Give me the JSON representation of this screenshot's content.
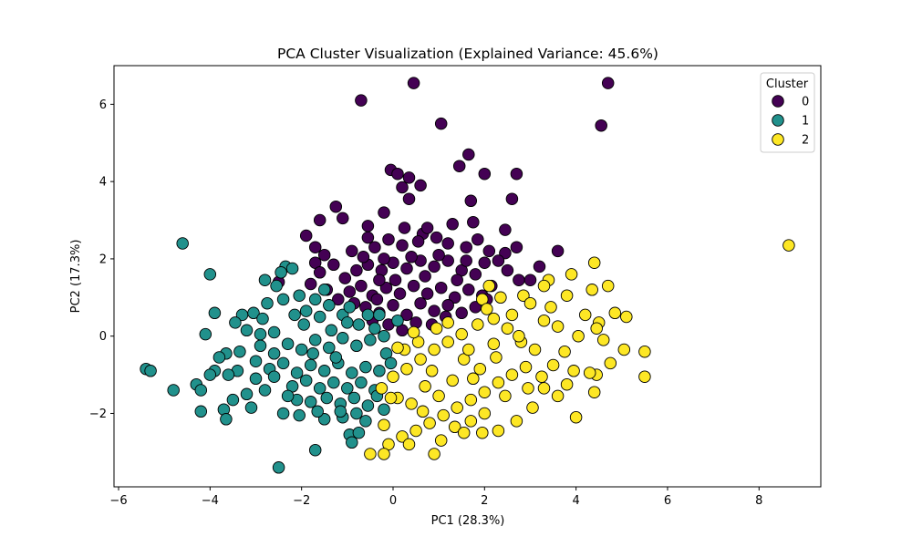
{
  "chart_data": {
    "type": "scatter",
    "title": "PCA Cluster Visualization (Explained Variance: 45.6%)",
    "xlabel": "PC1 (28.3%)",
    "ylabel": "PC2 (17.3%)",
    "xlim": [
      -6.1,
      9.35
    ],
    "ylim": [
      -3.9,
      7.0
    ],
    "x_ticks": [
      -6,
      -4,
      -2,
      0,
      2,
      4,
      6,
      8
    ],
    "y_ticks": [
      -2,
      0,
      2,
      4,
      6
    ],
    "x_tick_labels": [
      "−6",
      "−4",
      "−2",
      "0",
      "2",
      "4",
      "6",
      "8"
    ],
    "y_tick_labels": [
      "−2",
      "0",
      "2",
      "4",
      "6"
    ],
    "grid": false,
    "legend": {
      "title": "Cluster",
      "placement": "top-right"
    },
    "series": [
      {
        "name": "0",
        "color": "#440154",
        "points": [
          [
            -0.7,
            6.1
          ],
          [
            0.45,
            6.55
          ],
          [
            4.7,
            6.55
          ],
          [
            4.55,
            5.45
          ],
          [
            1.05,
            5.5
          ],
          [
            1.65,
            4.7
          ],
          [
            1.45,
            4.4
          ],
          [
            2.0,
            4.2
          ],
          [
            2.7,
            4.2
          ],
          [
            2.6,
            3.55
          ],
          [
            1.7,
            3.5
          ],
          [
            0.35,
            3.55
          ],
          [
            0.6,
            3.9
          ],
          [
            -0.05,
            4.3
          ],
          [
            0.1,
            4.2
          ],
          [
            0.35,
            4.1
          ],
          [
            0.2,
            3.85
          ],
          [
            -0.2,
            3.2
          ],
          [
            -1.25,
            3.35
          ],
          [
            -1.6,
            3.0
          ],
          [
            -1.1,
            3.05
          ],
          [
            -0.55,
            2.85
          ],
          [
            0.65,
            2.65
          ],
          [
            1.3,
            2.9
          ],
          [
            1.75,
            2.95
          ],
          [
            2.45,
            2.75
          ],
          [
            3.6,
            2.2
          ],
          [
            -0.55,
            2.55
          ],
          [
            -1.7,
            2.3
          ],
          [
            -1.7,
            1.9
          ],
          [
            -2.5,
            1.4
          ],
          [
            -1.6,
            1.65
          ],
          [
            -1.3,
            1.85
          ],
          [
            -0.9,
            2.2
          ],
          [
            -0.4,
            2.3
          ],
          [
            -0.1,
            2.5
          ],
          [
            0.2,
            2.35
          ],
          [
            0.55,
            2.45
          ],
          [
            0.95,
            2.55
          ],
          [
            1.2,
            2.4
          ],
          [
            1.6,
            2.3
          ],
          [
            1.85,
            2.5
          ],
          [
            2.1,
            2.2
          ],
          [
            2.45,
            2.15
          ],
          [
            2.7,
            2.3
          ],
          [
            -1.05,
            1.5
          ],
          [
            -0.8,
            1.7
          ],
          [
            -0.55,
            1.85
          ],
          [
            -0.25,
            1.7
          ],
          [
            0.0,
            1.9
          ],
          [
            0.3,
            1.75
          ],
          [
            0.6,
            1.95
          ],
          [
            0.9,
            1.8
          ],
          [
            1.2,
            1.95
          ],
          [
            1.5,
            1.7
          ],
          [
            1.8,
            1.6
          ],
          [
            2.0,
            1.9
          ],
          [
            2.3,
            1.95
          ],
          [
            2.75,
            1.45
          ],
          [
            3.0,
            1.45
          ],
          [
            -0.95,
            1.15
          ],
          [
            -0.7,
            1.3
          ],
          [
            -0.45,
            1.05
          ],
          [
            -0.15,
            1.25
          ],
          [
            0.15,
            1.1
          ],
          [
            0.45,
            1.3
          ],
          [
            0.75,
            1.1
          ],
          [
            1.05,
            1.25
          ],
          [
            1.35,
            1.0
          ],
          [
            1.65,
            1.2
          ],
          [
            1.95,
            1.05
          ],
          [
            2.15,
            1.3
          ],
          [
            -0.6,
            0.75
          ],
          [
            -0.3,
            0.6
          ],
          [
            0.0,
            0.8
          ],
          [
            0.3,
            0.55
          ],
          [
            0.6,
            0.85
          ],
          [
            0.9,
            0.65
          ],
          [
            1.2,
            0.8
          ],
          [
            1.5,
            0.6
          ],
          [
            1.8,
            0.75
          ],
          [
            -0.1,
            0.3
          ],
          [
            0.2,
            0.15
          ],
          [
            0.5,
            0.35
          ],
          [
            0.85,
            0.3
          ],
          [
            1.15,
            0.5
          ],
          [
            -0.45,
            0.4
          ],
          [
            -1.45,
            1.2
          ],
          [
            -1.2,
            0.95
          ],
          [
            -0.85,
            0.85
          ],
          [
            0.05,
            1.45
          ],
          [
            0.7,
            1.55
          ],
          [
            1.0,
            2.1
          ],
          [
            1.4,
            1.45
          ],
          [
            -0.3,
            1.45
          ],
          [
            0.4,
            2.05
          ],
          [
            0.75,
            2.8
          ],
          [
            -0.65,
            2.05
          ],
          [
            2.05,
            0.95
          ],
          [
            2.5,
            1.7
          ],
          [
            3.2,
            1.8
          ],
          [
            -0.2,
            2.0
          ],
          [
            1.6,
            1.95
          ],
          [
            0.25,
            2.8
          ],
          [
            -1.9,
            2.6
          ],
          [
            -1.5,
            2.1
          ],
          [
            -0.35,
            0.95
          ],
          [
            -1.8,
            1.35
          ]
        ]
      },
      {
        "name": "1",
        "color": "#21918c",
        "points": [
          [
            -4.6,
            2.4
          ],
          [
            -4.0,
            1.6
          ],
          [
            -3.9,
            0.6
          ],
          [
            -4.1,
            0.05
          ],
          [
            -5.4,
            -0.85
          ],
          [
            -5.3,
            -0.9
          ],
          [
            -4.8,
            -1.4
          ],
          [
            -4.3,
            -1.25
          ],
          [
            -4.2,
            -1.4
          ],
          [
            -4.2,
            -1.95
          ],
          [
            -3.7,
            -1.9
          ],
          [
            -3.65,
            -2.15
          ],
          [
            -3.5,
            -1.65
          ],
          [
            -3.1,
            -1.85
          ],
          [
            -3.9,
            -0.9
          ],
          [
            -4.0,
            -1.0
          ],
          [
            -3.65,
            -0.45
          ],
          [
            -3.4,
            -0.9
          ],
          [
            -2.5,
            -3.4
          ],
          [
            -1.7,
            -2.95
          ],
          [
            -2.8,
            1.45
          ],
          [
            -2.35,
            1.8
          ],
          [
            -2.2,
            1.75
          ],
          [
            -2.55,
            1.3
          ],
          [
            -3.3,
            0.55
          ],
          [
            -3.05,
            0.6
          ],
          [
            -2.85,
            0.45
          ],
          [
            -2.6,
            0.1
          ],
          [
            -3.2,
            0.15
          ],
          [
            -3.45,
            0.35
          ],
          [
            -2.4,
            0.95
          ],
          [
            -2.05,
            1.05
          ],
          [
            -1.7,
            0.95
          ],
          [
            -1.4,
            0.8
          ],
          [
            -1.1,
            0.55
          ],
          [
            -0.75,
            0.3
          ],
          [
            -0.4,
            0.2
          ],
          [
            -2.9,
            -0.25
          ],
          [
            -2.6,
            -0.45
          ],
          [
            -2.3,
            -0.2
          ],
          [
            -2.0,
            -0.35
          ],
          [
            -1.7,
            -0.1
          ],
          [
            -1.4,
            -0.3
          ],
          [
            -1.1,
            -0.05
          ],
          [
            -0.8,
            -0.25
          ],
          [
            -0.5,
            -0.1
          ],
          [
            -0.2,
            0.0
          ],
          [
            0.1,
            0.4
          ],
          [
            -2.7,
            -0.85
          ],
          [
            -2.4,
            -0.7
          ],
          [
            -2.1,
            -0.95
          ],
          [
            -1.8,
            -0.75
          ],
          [
            -1.5,
            -0.9
          ],
          [
            -1.2,
            -0.7
          ],
          [
            -0.9,
            -0.95
          ],
          [
            -0.6,
            -0.8
          ],
          [
            -0.3,
            -0.9
          ],
          [
            -2.2,
            -1.3
          ],
          [
            -1.9,
            -1.15
          ],
          [
            -1.6,
            -1.35
          ],
          [
            -1.3,
            -1.2
          ],
          [
            -1.0,
            -1.35
          ],
          [
            -0.7,
            -1.2
          ],
          [
            -0.4,
            -1.4
          ],
          [
            -2.1,
            -1.65
          ],
          [
            -1.8,
            -1.7
          ],
          [
            -1.45,
            -1.6
          ],
          [
            -1.15,
            -1.75
          ],
          [
            -0.85,
            -1.6
          ],
          [
            -0.55,
            -1.8
          ],
          [
            -2.4,
            -2.0
          ],
          [
            -2.05,
            -2.05
          ],
          [
            -1.5,
            -2.15
          ],
          [
            -1.1,
            -2.1
          ],
          [
            -0.8,
            -2.0
          ],
          [
            -0.6,
            -2.2
          ],
          [
            -0.95,
            -2.55
          ],
          [
            -0.9,
            -2.75
          ],
          [
            -0.75,
            -2.5
          ],
          [
            -1.15,
            -1.95
          ],
          [
            -3.0,
            -1.1
          ],
          [
            -2.8,
            -1.4
          ],
          [
            -3.2,
            -1.5
          ],
          [
            -3.35,
            -0.4
          ],
          [
            -3.0,
            -0.65
          ],
          [
            -2.75,
            0.85
          ],
          [
            -2.15,
            0.55
          ],
          [
            -1.95,
            0.3
          ],
          [
            -1.6,
            0.5
          ],
          [
            -1.35,
            0.15
          ],
          [
            -1.0,
            0.35
          ],
          [
            -0.3,
            0.55
          ],
          [
            -1.75,
            -0.45
          ],
          [
            -1.25,
            -0.55
          ],
          [
            -0.15,
            -0.45
          ],
          [
            -0.05,
            -0.7
          ],
          [
            -0.35,
            -1.55
          ],
          [
            -0.2,
            -1.9
          ],
          [
            -1.9,
            0.65
          ],
          [
            -1.5,
            1.2
          ],
          [
            -2.6,
            -1.05
          ],
          [
            -2.9,
            0.05
          ],
          [
            -0.95,
            0.75
          ],
          [
            -0.55,
            0.55
          ],
          [
            -1.65,
            -1.95
          ],
          [
            -2.3,
            -1.55
          ],
          [
            -3.6,
            -1.0
          ],
          [
            -3.8,
            -0.55
          ],
          [
            -2.45,
            1.65
          ]
        ]
      },
      {
        "name": "2",
        "color": "#fde725",
        "points": [
          [
            8.65,
            2.35
          ],
          [
            4.4,
            1.9
          ],
          [
            3.9,
            1.6
          ],
          [
            4.7,
            1.3
          ],
          [
            4.35,
            1.2
          ],
          [
            3.8,
            1.05
          ],
          [
            3.4,
            1.45
          ],
          [
            3.3,
            1.3
          ],
          [
            2.85,
            1.05
          ],
          [
            2.35,
            1.0
          ],
          [
            2.1,
            1.3
          ],
          [
            1.95,
            0.95
          ],
          [
            5.1,
            0.5
          ],
          [
            4.2,
            0.55
          ],
          [
            4.5,
            0.35
          ],
          [
            4.45,
            0.2
          ],
          [
            4.05,
            0.0
          ],
          [
            4.6,
            -0.1
          ],
          [
            5.05,
            -0.35
          ],
          [
            5.5,
            -0.4
          ],
          [
            4.75,
            -0.7
          ],
          [
            4.45,
            -1.0
          ],
          [
            5.5,
            -1.05
          ],
          [
            4.4,
            -1.45
          ],
          [
            4.0,
            -2.1
          ],
          [
            3.6,
            -1.55
          ],
          [
            3.95,
            -0.9
          ],
          [
            3.5,
            -0.75
          ],
          [
            3.1,
            -0.35
          ],
          [
            2.8,
            -0.15
          ],
          [
            2.5,
            0.2
          ],
          [
            2.2,
            0.45
          ],
          [
            1.85,
            0.3
          ],
          [
            1.5,
            0.05
          ],
          [
            1.2,
            -0.15
          ],
          [
            0.9,
            -0.35
          ],
          [
            0.6,
            -0.6
          ],
          [
            0.3,
            -0.85
          ],
          [
            0.0,
            -1.05
          ],
          [
            2.6,
            0.55
          ],
          [
            3.0,
            0.85
          ],
          [
            3.3,
            0.4
          ],
          [
            3.6,
            0.25
          ],
          [
            2.9,
            -0.8
          ],
          [
            2.6,
            -1.0
          ],
          [
            2.3,
            -1.2
          ],
          [
            2.0,
            -1.45
          ],
          [
            1.7,
            -1.65
          ],
          [
            1.4,
            -1.85
          ],
          [
            1.1,
            -2.05
          ],
          [
            0.8,
            -2.25
          ],
          [
            0.5,
            -2.45
          ],
          [
            0.2,
            -2.6
          ],
          [
            -0.1,
            -2.8
          ],
          [
            -0.5,
            -3.05
          ],
          [
            -0.2,
            -3.05
          ],
          [
            0.9,
            -3.05
          ],
          [
            1.95,
            -2.5
          ],
          [
            2.3,
            -2.45
          ],
          [
            2.7,
            -2.2
          ],
          [
            3.05,
            -1.85
          ],
          [
            3.3,
            -1.35
          ],
          [
            1.55,
            -0.6
          ],
          [
            1.9,
            -0.85
          ],
          [
            2.25,
            -0.55
          ],
          [
            0.7,
            -1.3
          ],
          [
            1.0,
            -1.55
          ],
          [
            0.4,
            -1.75
          ],
          [
            0.1,
            -1.6
          ],
          [
            1.3,
            -1.15
          ],
          [
            1.65,
            -0.35
          ],
          [
            0.95,
            0.2
          ],
          [
            0.55,
            -0.15
          ],
          [
            0.25,
            -0.35
          ],
          [
            3.75,
            -0.4
          ],
          [
            3.25,
            -1.05
          ],
          [
            2.0,
            -2.0
          ],
          [
            1.35,
            -2.35
          ],
          [
            0.65,
            -1.95
          ],
          [
            -0.2,
            -2.3
          ],
          [
            -0.05,
            -1.6
          ],
          [
            0.85,
            -0.9
          ],
          [
            2.45,
            -1.55
          ],
          [
            1.75,
            -1.1
          ],
          [
            2.75,
            0.0
          ],
          [
            1.2,
            0.35
          ],
          [
            0.45,
            0.1
          ],
          [
            3.45,
            0.75
          ],
          [
            2.05,
            0.7
          ],
          [
            1.55,
            -2.5
          ],
          [
            2.95,
            -1.35
          ],
          [
            0.1,
            -0.3
          ],
          [
            -0.25,
            -1.35
          ],
          [
            4.3,
            -0.95
          ],
          [
            3.8,
            -1.25
          ],
          [
            2.2,
            -0.2
          ],
          [
            1.05,
            -2.7
          ],
          [
            0.35,
            -2.8
          ],
          [
            1.7,
            -2.2
          ],
          [
            4.85,
            0.6
          ]
        ]
      }
    ]
  }
}
